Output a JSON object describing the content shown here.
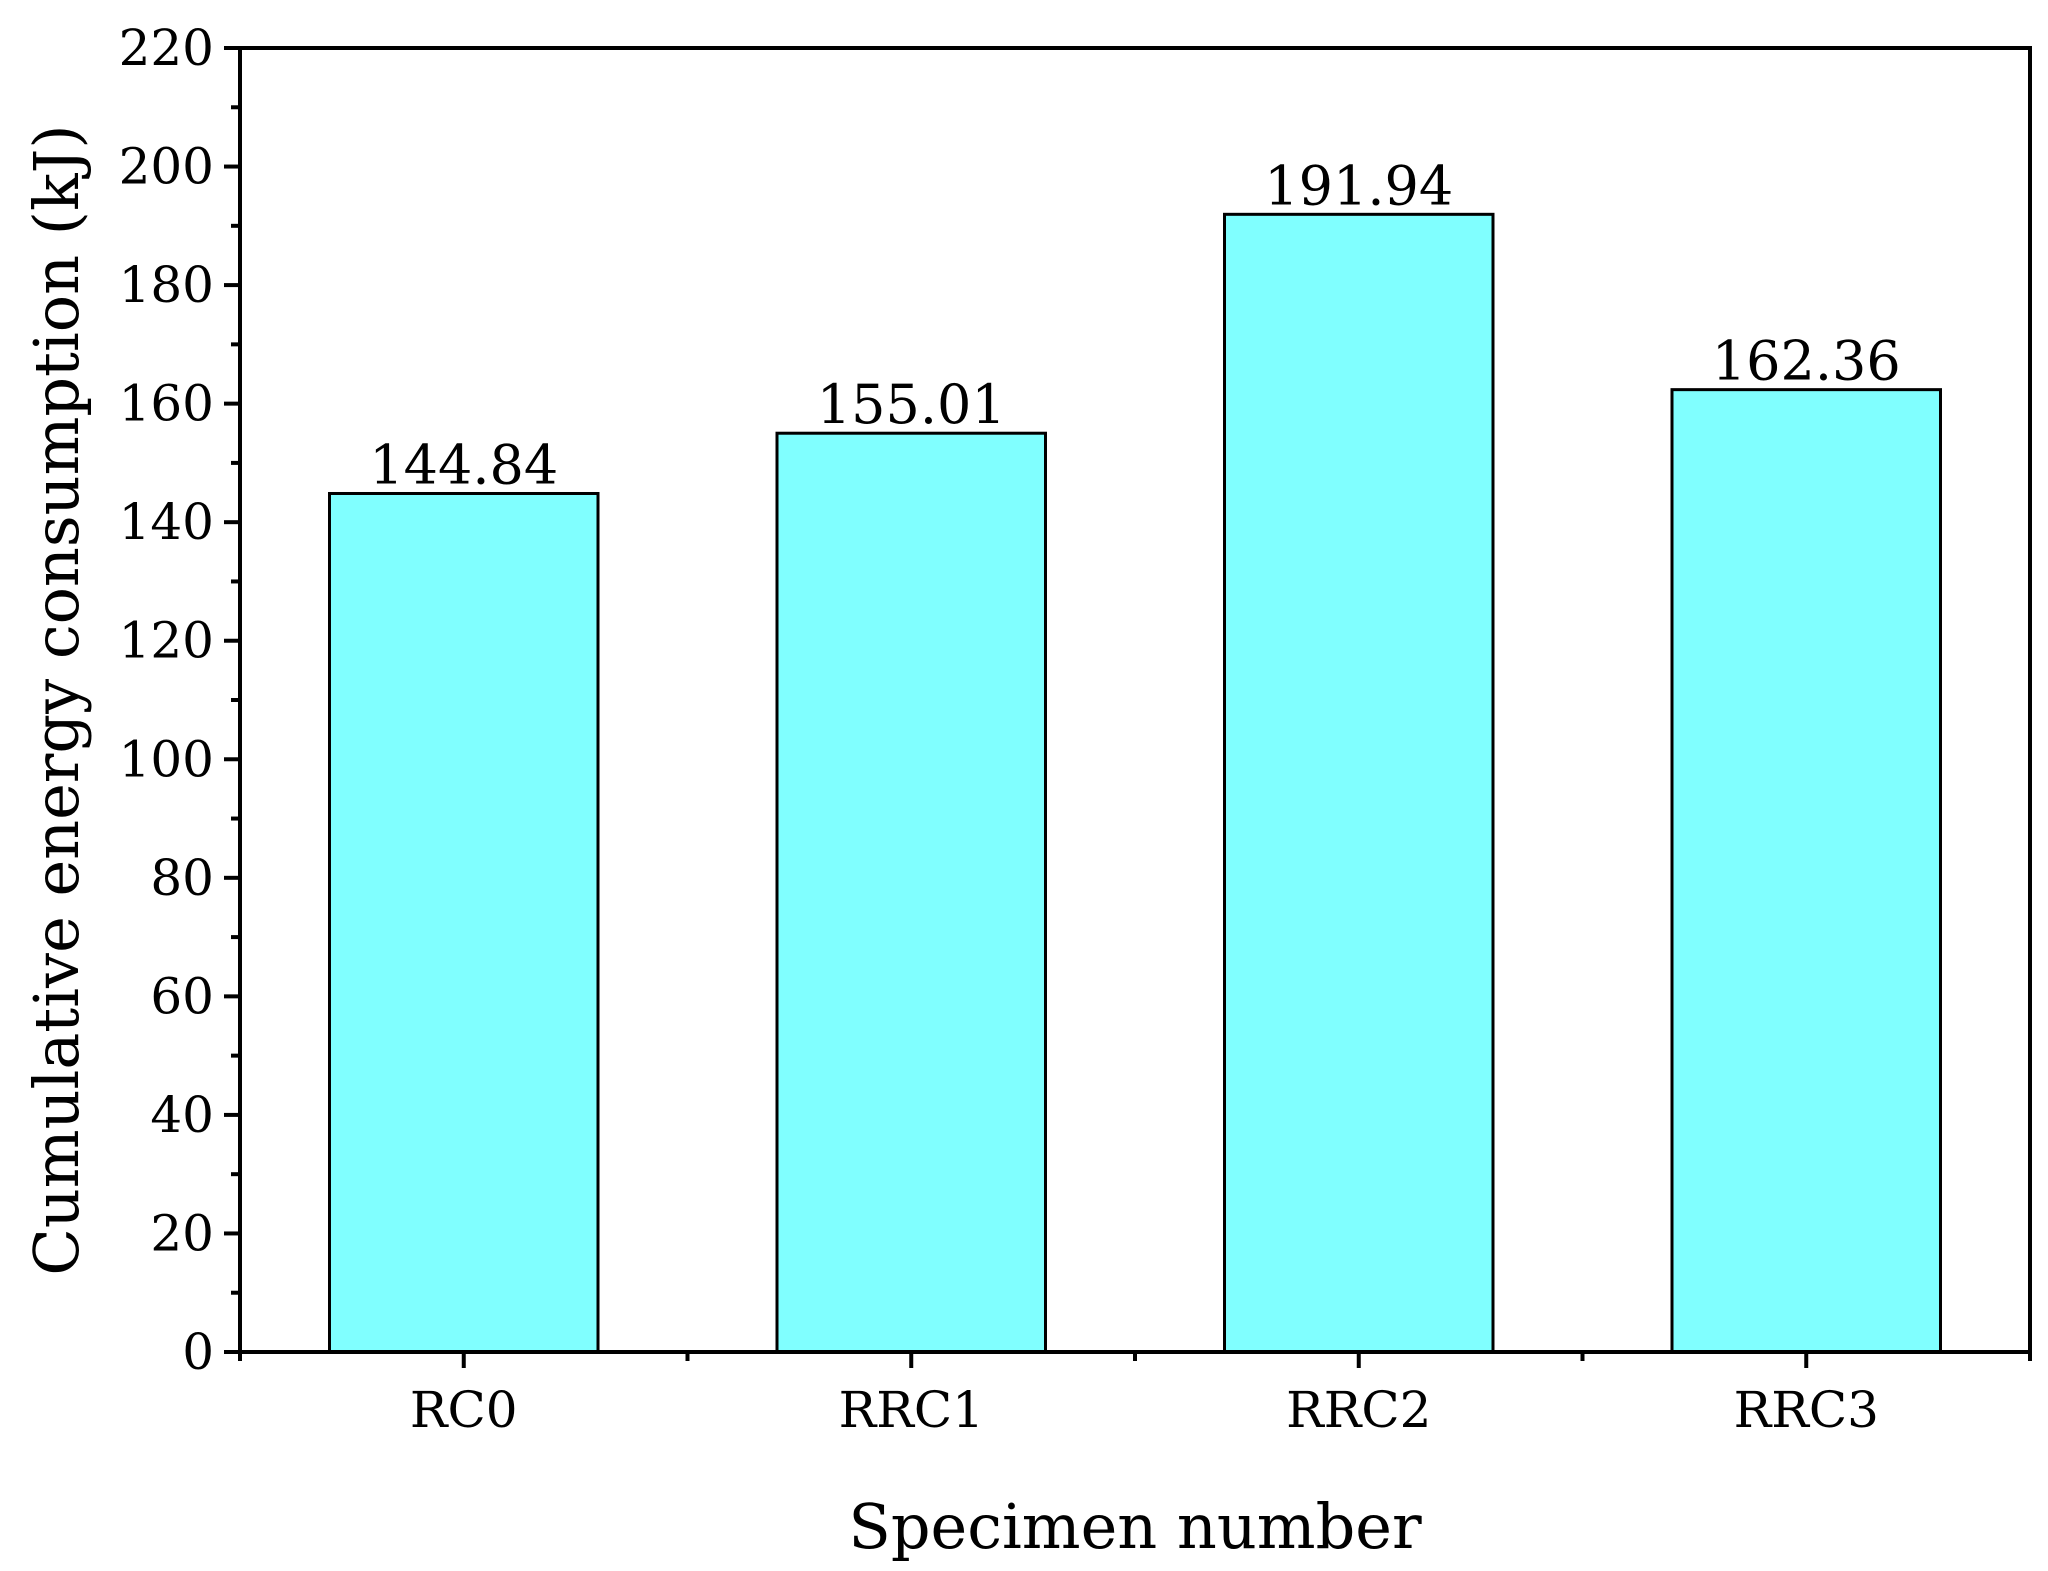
{
  "chart_data": {
    "type": "bar",
    "title": "",
    "xlabel": "Specimen number",
    "ylabel": "Cumulative energy consumption (kJ)",
    "categories": [
      "RC0",
      "RRC1",
      "RRC2",
      "RRC3"
    ],
    "values": [
      144.84,
      155.01,
      191.94,
      162.36
    ],
    "data_labels": [
      "144.84",
      "155.01",
      "191.94",
      "162.36"
    ],
    "ylim": [
      0,
      220
    ],
    "y_ticks": [
      0,
      20,
      40,
      60,
      80,
      100,
      120,
      140,
      160,
      180,
      200,
      220
    ],
    "y_minor_step": 10,
    "grid": false,
    "legend": "none",
    "bar_color": "#80FFFF",
    "edge_color": "#000000"
  }
}
